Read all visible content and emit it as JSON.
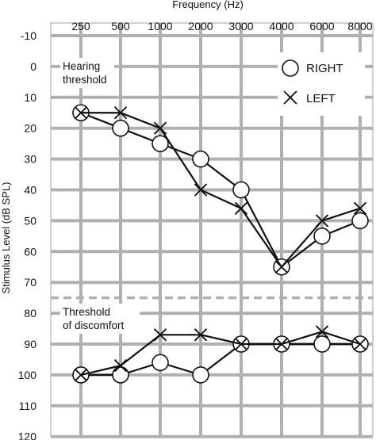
{
  "chart_data": {
    "type": "line",
    "xlabel": "Frequency (Hz)",
    "ylabel": "Stimulus Level (dB SPL)",
    "categories": [
      "250",
      "500",
      "1000",
      "2000",
      "3000",
      "4000",
      "6000",
      "8000"
    ],
    "y_ticks": [
      "-10",
      "0",
      "10",
      "20",
      "30",
      "40",
      "50",
      "60",
      "70",
      "80",
      "90",
      "100",
      "110",
      "120"
    ],
    "ylim": [
      -10,
      120
    ],
    "y_inverted": true,
    "grid": true,
    "legend_position": "top-right",
    "series": [
      {
        "name": "RIGHT",
        "marker": "circle",
        "group": "hearing-threshold",
        "values": [
          15,
          20,
          25,
          30,
          40,
          65,
          55,
          50
        ]
      },
      {
        "name": "LEFT",
        "marker": "x",
        "group": "hearing-threshold",
        "values": [
          15,
          15,
          20,
          40,
          46,
          65,
          50,
          46
        ]
      },
      {
        "name": "RIGHT",
        "marker": "circle",
        "group": "threshold-of-discomfort",
        "values": [
          100,
          100,
          96,
          100,
          90,
          90,
          90,
          90
        ]
      },
      {
        "name": "LEFT",
        "marker": "x",
        "group": "threshold-of-discomfort",
        "values": [
          100,
          97,
          87,
          87,
          90,
          90,
          86,
          90
        ]
      }
    ],
    "annotations": [
      {
        "lines": [
          "Hearing",
          "threshold"
        ]
      },
      {
        "lines": [
          "Threshold",
          "of discomfort"
        ]
      }
    ],
    "legend": [
      {
        "label": "RIGHT",
        "marker": "circle"
      },
      {
        "label": "LEFT",
        "marker": "x"
      }
    ],
    "colors": {
      "line": "#111111",
      "grid": "#b0b0b0",
      "background": "#ffffff"
    }
  }
}
